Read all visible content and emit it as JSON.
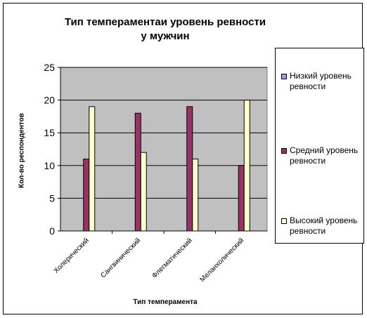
{
  "chart_data": {
    "type": "bar",
    "title_line1": "Тип темпераментаи уровень ревности",
    "title_line2": "у мужчин",
    "xlabel": "Тип темперамента",
    "ylabel": "Кол-во респондентов",
    "categories": [
      "Холерический",
      "Сангвинический",
      "Флегматический",
      "Меланхолический"
    ],
    "ylim": [
      0,
      25
    ],
    "yticks": [
      "0",
      "5",
      "10",
      "15",
      "20",
      "25"
    ],
    "grid": true,
    "legend_position": "right",
    "series": [
      {
        "name": "Низкий уровень ревности",
        "color": "#9999ff",
        "values": [
          0,
          0,
          0,
          0
        ]
      },
      {
        "name": "Средний уровень ревности",
        "color": "#993366",
        "values": [
          11,
          18,
          19,
          10
        ]
      },
      {
        "name": "Высокий уровень ревности",
        "color": "#ffffcc",
        "values": [
          19,
          12,
          11,
          20
        ]
      }
    ],
    "plot_background": "#c0c0c0"
  }
}
